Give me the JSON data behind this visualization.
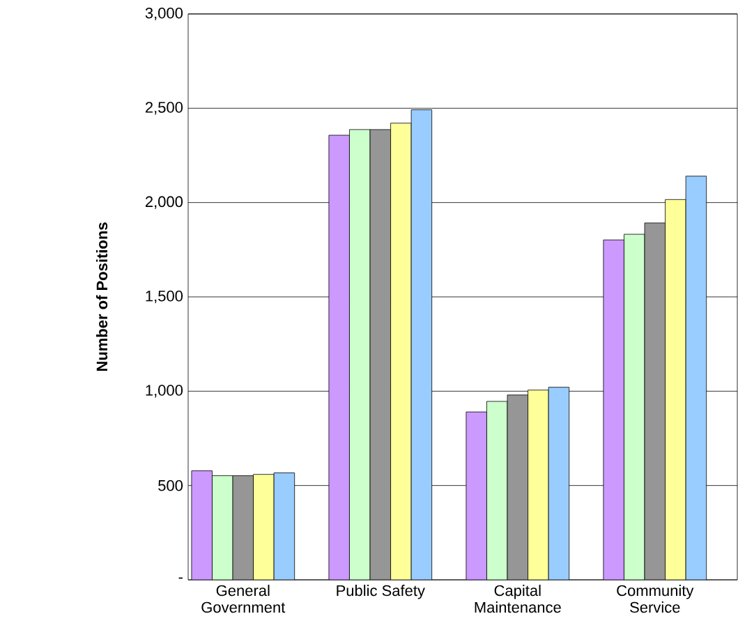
{
  "chart_data": {
    "type": "bar",
    "ylabel": "Number of Positions",
    "categories": [
      "General\nGovernment",
      "Public Safety",
      "Capital\nMaintenance",
      "Community\nService"
    ],
    "series": [
      {
        "color": "#cc99ff",
        "values": [
          578,
          2357,
          890,
          1802
        ]
      },
      {
        "color": "#ccffcc",
        "values": [
          552,
          2387,
          946,
          1832
        ]
      },
      {
        "color": "#969696",
        "values": [
          552,
          2387,
          980,
          1892
        ]
      },
      {
        "color": "#ffff99",
        "values": [
          559,
          2421,
          1006,
          2016
        ]
      },
      {
        "color": "#99ccff",
        "values": [
          567,
          2492,
          1021,
          2140
        ]
      }
    ],
    "ylim": [
      0,
      3000
    ],
    "yticks": [
      {
        "value": 0,
        "label": "-"
      },
      {
        "value": 500,
        "label": "500"
      },
      {
        "value": 1000,
        "label": "1,000"
      },
      {
        "value": 1500,
        "label": "1,500"
      },
      {
        "value": 2000,
        "label": "2,000"
      },
      {
        "value": 2500,
        "label": "2,500"
      },
      {
        "value": 3000,
        "label": "3,000"
      }
    ],
    "grid": "y"
  }
}
